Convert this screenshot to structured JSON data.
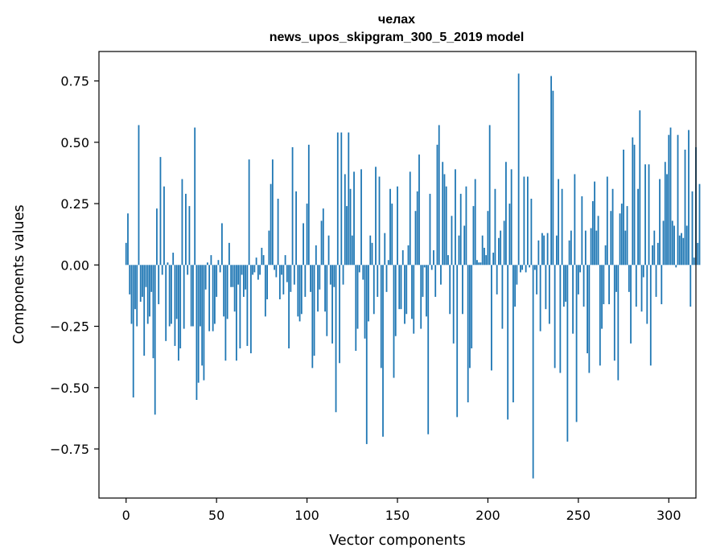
{
  "chart_data": {
    "type": "bar",
    "title_line1": "челах",
    "title_line2": "news_upos_skipgram_300_5_2019 model",
    "xlabel": "Vector components",
    "ylabel": "Components values",
    "xlim": [
      -15,
      315
    ],
    "ylim": [
      -0.95,
      0.87
    ],
    "xticks": [
      0,
      50,
      100,
      150,
      200,
      250,
      300
    ],
    "xtick_labels": [
      "0",
      "50",
      "100",
      "150",
      "200",
      "250",
      "300"
    ],
    "yticks": [
      -0.75,
      -0.5,
      -0.25,
      0.0,
      0.25,
      0.5,
      0.75
    ],
    "ytick_labels": [
      "−0.75",
      "−0.50",
      "−0.25",
      "0.00",
      "0.25",
      "0.50",
      "0.75"
    ],
    "bar_color": "#1f77b4",
    "values": [
      0.09,
      0.21,
      -0.12,
      -0.24,
      -0.54,
      -0.18,
      -0.25,
      0.57,
      -0.15,
      -0.13,
      -0.37,
      -0.09,
      -0.24,
      -0.21,
      -0.11,
      -0.38,
      -0.61,
      0.23,
      -0.16,
      0.44,
      -0.04,
      0.32,
      -0.31,
      0.01,
      -0.25,
      -0.24,
      0.05,
      -0.33,
      -0.22,
      -0.39,
      -0.34,
      0.35,
      -0.26,
      0.29,
      -0.04,
      0.24,
      -0.25,
      -0.25,
      0.56,
      -0.55,
      -0.48,
      -0.25,
      -0.41,
      -0.47,
      -0.1,
      0.01,
      -0.27,
      0.04,
      -0.27,
      -0.24,
      -0.13,
      0.02,
      -0.03,
      0.17,
      -0.21,
      -0.39,
      -0.22,
      0.09,
      -0.09,
      -0.09,
      -0.19,
      -0.39,
      -0.08,
      -0.34,
      -0.04,
      -0.13,
      -0.1,
      -0.33,
      0.43,
      -0.36,
      -0.04,
      -0.03,
      0.03,
      -0.06,
      -0.04,
      0.07,
      0.04,
      -0.21,
      -0.14,
      0.14,
      0.33,
      0.43,
      -0.02,
      -0.05,
      0.27,
      -0.14,
      -0.04,
      -0.12,
      0.04,
      -0.07,
      -0.34,
      -0.11,
      0.48,
      -0.08,
      0.3,
      -0.21,
      -0.23,
      -0.2,
      0.17,
      -0.13,
      0.25,
      0.49,
      -0.11,
      -0.42,
      -0.37,
      0.08,
      -0.19,
      -0.1,
      0.18,
      0.23,
      -0.19,
      -0.29,
      0.12,
      -0.08,
      -0.32,
      -0.09,
      -0.6,
      0.54,
      -0.4,
      0.54,
      -0.08,
      0.37,
      0.24,
      0.54,
      0.31,
      0.12,
      0.38,
      -0.35,
      -0.26,
      -0.03,
      0.39,
      -0.06,
      -0.3,
      -0.73,
      -0.23,
      0.12,
      0.09,
      -0.2,
      0.4,
      -0.13,
      0.36,
      -0.42,
      -0.7,
      0.13,
      -0.11,
      0.02,
      0.31,
      0.25,
      -0.46,
      -0.29,
      0.32,
      -0.18,
      -0.18,
      0.06,
      -0.24,
      -0.2,
      0.08,
      0.38,
      -0.22,
      -0.28,
      0.22,
      0.3,
      0.45,
      -0.26,
      -0.13,
      -0.01,
      -0.21,
      -0.69,
      0.29,
      -0.02,
      0.06,
      -0.13,
      0.49,
      0.57,
      -0.08,
      0.42,
      0.37,
      0.32,
      0.04,
      -0.2,
      0.2,
      -0.32,
      0.39,
      -0.62,
      0.12,
      0.29,
      -0.2,
      0.16,
      0.32,
      -0.56,
      -0.42,
      -0.34,
      0.24,
      0.35,
      0.02,
      0.01,
      0.01,
      0.12,
      0.07,
      0.04,
      0.22,
      0.57,
      -0.43,
      0.05,
      0.31,
      -0.12,
      0.11,
      0.14,
      -0.26,
      0.18,
      0.42,
      -0.63,
      0.25,
      0.39,
      -0.56,
      -0.17,
      -0.08,
      0.78,
      -0.03,
      -0.02,
      0.36,
      -0.03,
      0.36,
      -0.01,
      0.27,
      -0.87,
      -0.02,
      -0.12,
      0.1,
      -0.27,
      0.13,
      0.12,
      -0.18,
      0.13,
      -0.24,
      0.77,
      0.71,
      -0.42,
      0.12,
      0.35,
      -0.44,
      0.31,
      -0.17,
      -0.15,
      -0.72,
      0.1,
      0.14,
      -0.28,
      0.37,
      -0.64,
      -0.12,
      -0.03,
      0.28,
      -0.17,
      0.14,
      -0.36,
      -0.44,
      0.15,
      0.26,
      0.34,
      0.14,
      0.2,
      -0.41,
      -0.26,
      -0.16,
      0.08,
      0.36,
      -0.16,
      0.22,
      0.31,
      -0.39,
      -0.11,
      -0.47,
      0.21,
      0.25,
      0.47,
      0.14,
      0.24,
      -0.11,
      -0.32,
      0.52,
      0.49,
      -0.17,
      0.31,
      0.63,
      -0.19,
      -0.05,
      0.41,
      -0.24,
      0.41,
      -0.41,
      0.08,
      0.14,
      -0.13,
      0.09,
      0.35,
      -0.16,
      0.18,
      0.42,
      0.37,
      0.53,
      0.56,
      0.18,
      0.16,
      -0.01,
      0.53,
      0.12,
      0.13,
      0.11,
      0.47,
      0.16,
      0.55,
      -0.17,
      0.3,
      0.03,
      0.48,
      0.09,
      0.33
    ]
  }
}
